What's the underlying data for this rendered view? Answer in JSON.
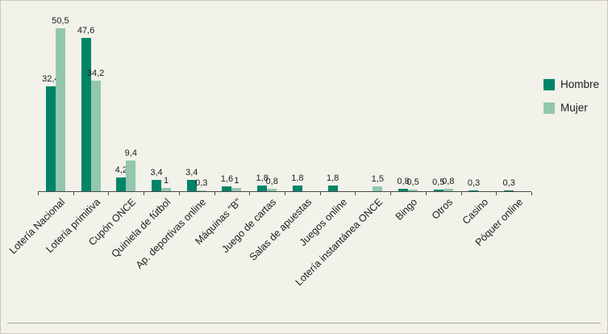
{
  "chart_data": {
    "type": "bar",
    "title": "",
    "xlabel": "",
    "ylabel": "",
    "ylim": [
      0,
      52
    ],
    "grid": false,
    "legend_position": "right",
    "background_color": "#f2f1ea",
    "categories": [
      "Lotería Nacional",
      "Lotería primitiva",
      "Cupón ONCE",
      "Quiniela de fútbol",
      "Ap. deportivas online",
      "Máquinas \"B\"",
      "Juego de cartas",
      "Salas de apuestas",
      "Juegos online",
      "Lotería instantánea ONCE",
      "Bingo",
      "Otros",
      "Casino",
      "Póquer online"
    ],
    "series": [
      {
        "name": "Hombre",
        "color": "#008468",
        "values": [
          32.4,
          47.6,
          4.2,
          3.4,
          3.4,
          1.6,
          1.8,
          1.8,
          1.8,
          null,
          0.8,
          0.5,
          0.3,
          0.3
        ],
        "value_labels": [
          "32,4",
          "47,6",
          "4,2",
          "3,4",
          "3,4",
          "1,6",
          "1,8",
          "1,8",
          "1,8",
          null,
          "0,8",
          "0,5",
          "0,3",
          "0,3"
        ]
      },
      {
        "name": "Mujer",
        "color": "#92c7ae",
        "values": [
          50.5,
          34.2,
          9.4,
          1,
          0.3,
          1,
          0.8,
          null,
          null,
          1.5,
          0.5,
          0.8,
          null,
          null
        ],
        "value_labels": [
          "50,5",
          "34,2",
          "9,4",
          "1",
          "0,3",
          "1",
          "0,8",
          null,
          null,
          "1,5",
          "0,5",
          "0,8",
          null,
          null
        ]
      }
    ]
  }
}
